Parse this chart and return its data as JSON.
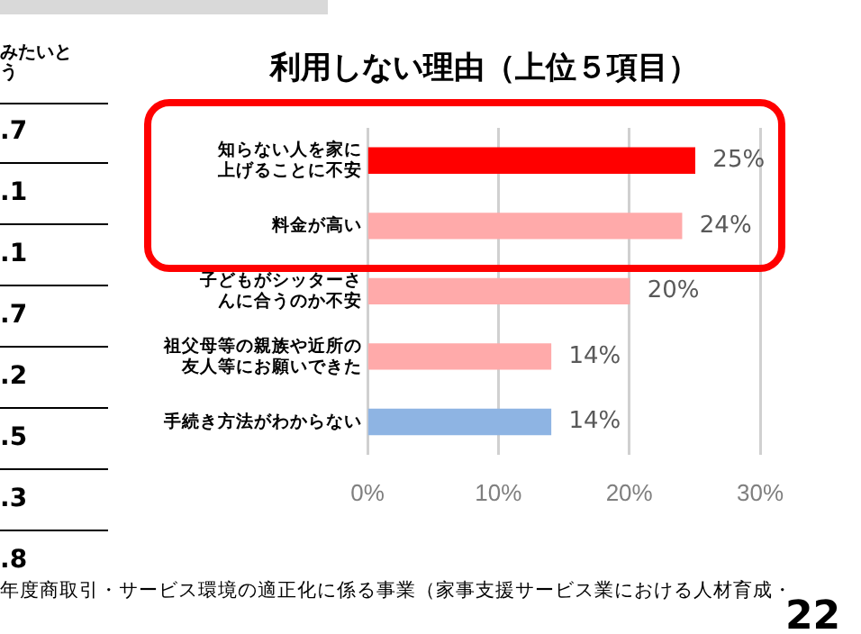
{
  "chart_data": {
    "type": "bar",
    "orientation": "horizontal",
    "title": "利用しない理由（上位５項目）",
    "categories": [
      "知らない人を家に上げることに不安",
      "料金が高い",
      "子どもがシッターさんに合うのか不安",
      "祖父母等の親族や近所の友人等にお願いできた",
      "手続き方法がわからない"
    ],
    "values": [
      25,
      24,
      20,
      14,
      14
    ],
    "colors": [
      "#ff0000",
      "#ffaaaa",
      "#ffaaaa",
      "#ffaaaa",
      "#8eb4e3"
    ],
    "value_labels": [
      "25%",
      "24%",
      "20%",
      "14%",
      "14%"
    ],
    "xlim": [
      0,
      30
    ],
    "xticks": [
      {
        "value": 0,
        "label": "0%"
      },
      {
        "value": 10,
        "label": "10%"
      },
      {
        "value": 20,
        "label": "20%"
      },
      {
        "value": 30,
        "label": "30%"
      }
    ],
    "grid": "x",
    "annotations": [
      "みたいとう",
      ".7",
      ".1",
      ".1",
      ".7",
      ".2",
      ".5",
      ".3",
      ".8",
      "年度商取引・サービス環境の適正化に係る事業（家事支援サービス業における人材育成・",
      "22"
    ]
  }
}
